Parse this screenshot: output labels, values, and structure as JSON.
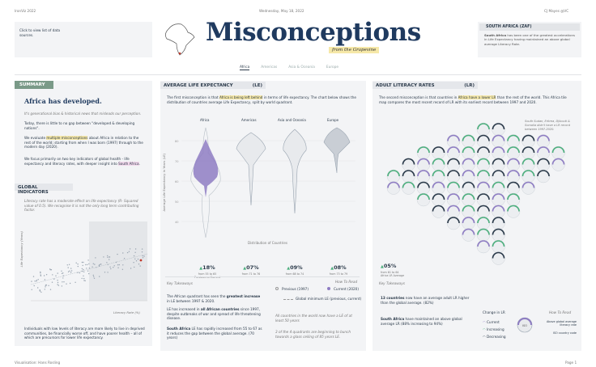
{
  "top": {
    "left": "IronViz 2022",
    "center": "Wednesday, May 18, 2022",
    "right": "CJ Mayes  @VC"
  },
  "header": {
    "title": "Misconceptions",
    "subtitle": "from the Grapevine",
    "sources_link": "Click to view list of data sources."
  },
  "country_card": {
    "title": "SOUTH AFRICA (ZAF)",
    "text_pre": "South Africa",
    "text_rest": " has been one of the greatest accelerations in Life Expectancy having maintained an above global average Literacy Rate."
  },
  "tabs": [
    "Africa",
    "Americas",
    "Asia & Oceania",
    "Europe"
  ],
  "summary": {
    "label": "SUMMARY",
    "headline": "Africa has developed.",
    "intro": "It's generational bias & historical news that misleads our perception.",
    "p1": "Today, there is little to no gap between \"developed & developing nations\".",
    "p2_a": "We evaluate ",
    "p2_hl": "multiple misconceptions",
    "p2_b": " about Africa in relation to the rest of the world; starting from when I was born (1997) through to the modern day (2020).",
    "p3_a": "We focus primarily on two key indicators of global health - life expectancy and literacy rates, with deeper insight into ",
    "p3_hl": "South Africa",
    "p3_b": "."
  },
  "global": {
    "label": "GLOBAL INDICATORS",
    "note": "Literacy rate has a moderate effect on life expectancy (R- Squared value of 0.5). We recognise it is not the only long term contributing factor.",
    "ylabel": "Life Expectancy (Years)",
    "xlabel": "Literacy Rate (%)",
    "footer": "Individuals with low levels of literacy are more likely to live in deprived communities, be financially worse off, and have poorer health – all of which are precursors for lower life expectancy."
  },
  "life": {
    "label": "AVERAGE LIFE EXPECTANCY",
    "abbr": "(LE)",
    "intro_a": "The first misconception is that ",
    "intro_hl": "Africa is being left behind",
    "intro_b": " in terms of life expectancy. The chart below shows the distribution of countries average Life Expectancy, split by world quadrant.",
    "yaxis": "Average Life Expectancy in Years (LE)",
    "xlabel": "Distribution of Countries",
    "regions": [
      "Africa",
      "Americas",
      "Asia and Oceania",
      "Europe"
    ],
    "stats": [
      {
        "value": "18%",
        "sub": "from 55 to 65",
        "sub2": "Previous vs Current"
      },
      {
        "value": "07%",
        "sub": "from 71 to 76"
      },
      {
        "value": "09%",
        "sub": "from 68 to 74"
      },
      {
        "value": "08%",
        "sub": "from 73 to 79"
      }
    ],
    "takeaways_label": "Key Takeaways",
    "t1_a": "The African quadrant has seen the ",
    "t1_b": "greatest increase",
    "t1_c": " in LE between 1997 & 2020.",
    "t2_a": "LE has increased in ",
    "t2_b": "all African countries",
    "t2_c": " since 1997, despite outbreaks of war and spread of life threatening disease.",
    "t3_a": "South Africa",
    "t3_b": " LE has rapidly increased from 55 to 67 as it reduces the gap between the global average. (70 years)",
    "howto": "How To Read",
    "prev": "Previous (1997)",
    "curr": "Current (2020)",
    "glob": "Global minimum LE (previous, current)",
    "n1": "All countries in the world now have a LE of at least 50 years",
    "n2": "3 of the 4 quadrants are beginning to bunch towards a glass ceiling of 85 years LE."
  },
  "lit": {
    "label": "ADULT LITERACY RATES",
    "abbr": "(LR)",
    "intro_a": "The second misconception is that countries in ",
    "intro_hl": "Africa have a lower LR",
    "intro_b": " than the rest of the world. This Africa tile map compares the most recent record of LR with its earliest record between 1997 and 2020.",
    "side": "South Sudan, Eritrea, Djibouti & Somalia didn't have a LR record between 1997-2020.",
    "stat": "05%",
    "stat_sub": "from 61 to 64",
    "stat_sub2": "Africa LR Average",
    "takeaways_label": "Key Takeaways",
    "t1_a": "13 countries",
    "t1_b": " now have an average adult LR higher than the global average. (82%)",
    "t2_a": "South Africa",
    "t2_b": " have maintained an above global average LR (88% increasing to 94%)",
    "change": "Change in LR",
    "current": "Current",
    "increasing": "Increasing",
    "decreasing": "Decreasing",
    "howto": "How To Read",
    "r1": "Above global average literacy rate",
    "r2": "ISO country code",
    "iso": "ISO"
  },
  "footer": {
    "left": "Visualisation: Hans Rosling",
    "right": "Page 1"
  },
  "colors": {
    "purple": "#8e7cc3",
    "grey": "#9aa5b1",
    "yellow": "#f6e8a8"
  }
}
